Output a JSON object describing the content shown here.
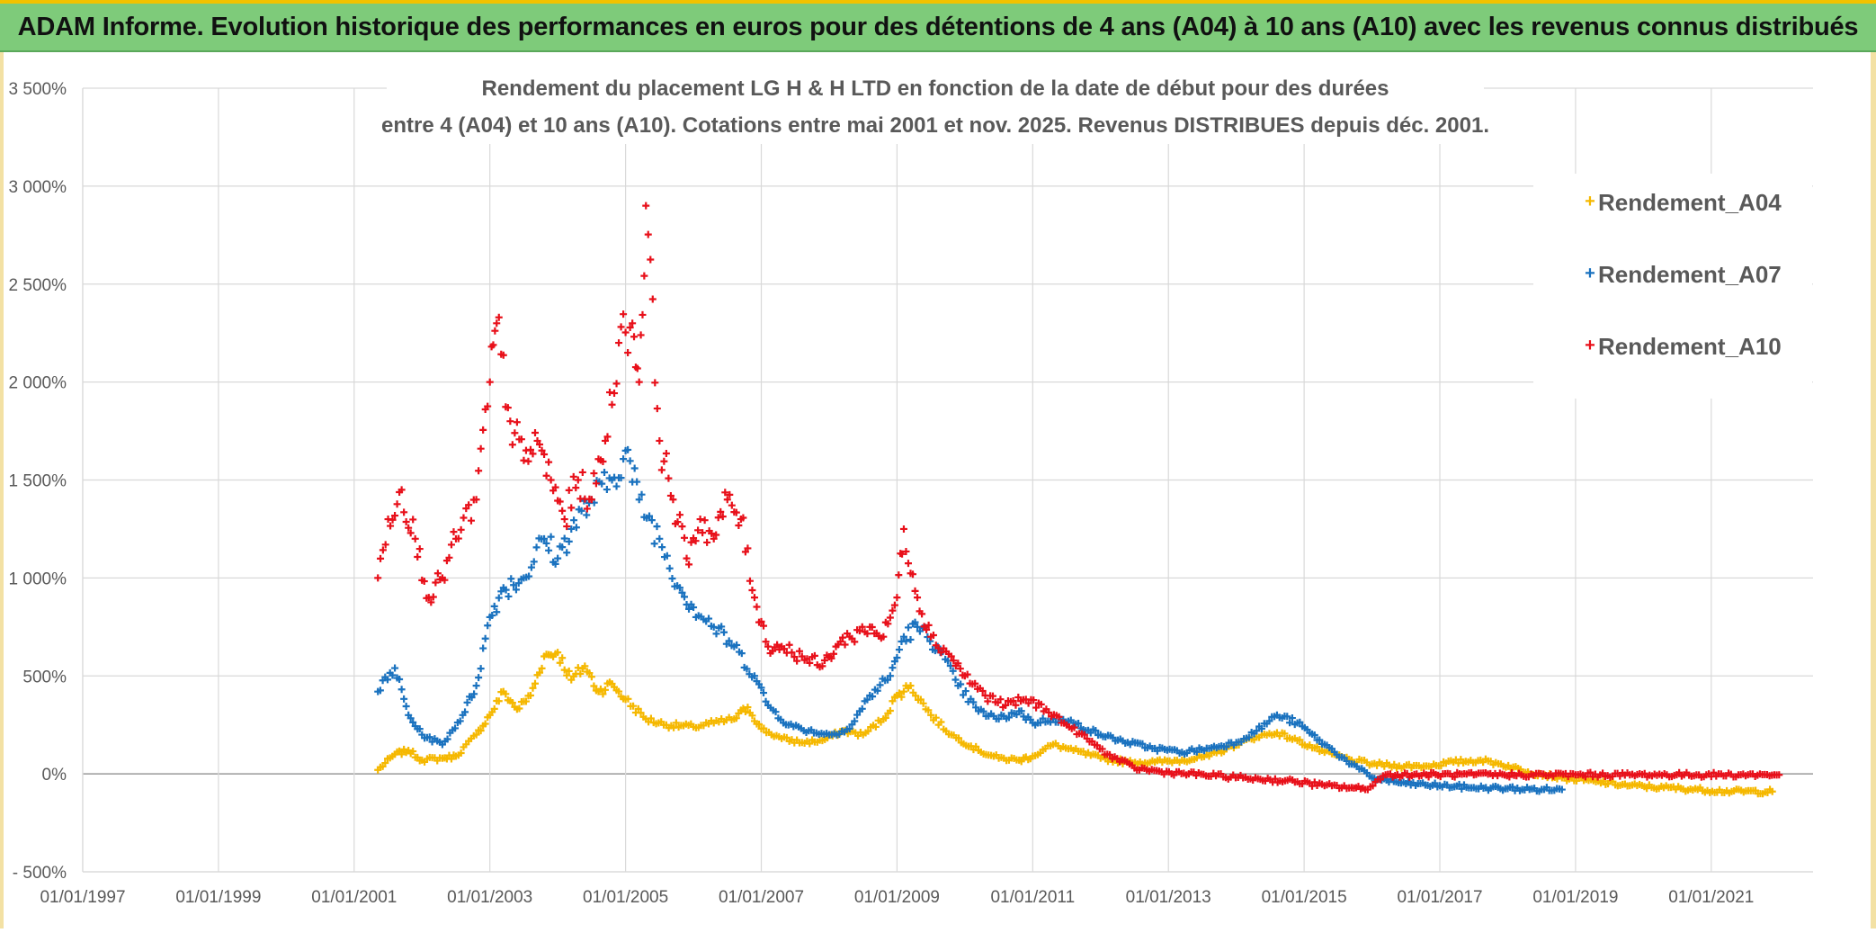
{
  "header": {
    "banner_title": "ADAM Informe. Evolution historique des performances en euros pour des détentions de 4 ans (A04) à 10 ans (A10) avec les revenus connus distribués"
  },
  "chart_data": {
    "type": "scatter",
    "title_line1": "Rendement du placement LG H & H LTD en fonction de la date de début pour des durées",
    "title_line2": "entre 4 (A04) et 10 ans (A10). Cotations entre mai 2001 et nov. 2025. Revenus DISTRIBUES depuis déc. 2001.",
    "xlabel": "",
    "ylabel": "",
    "x_range": [
      1997.0,
      2022.5
    ],
    "ylim": [
      -500,
      3500
    ],
    "y_ticks": [
      -500,
      0,
      500,
      1000,
      1500,
      2000,
      2500,
      3000,
      3500
    ],
    "y_tick_labels": [
      "- 500%",
      "0%",
      "500%",
      "1 000%",
      "1 500%",
      "2 000%",
      "2 500%",
      "3 000%",
      "3 500%"
    ],
    "x_ticks": [
      1997,
      1999,
      2001,
      2003,
      2005,
      2007,
      2009,
      2011,
      2013,
      2015,
      2017,
      2019,
      2021
    ],
    "x_tick_labels": [
      "01/01/1997",
      "01/01/1999",
      "01/01/2001",
      "01/01/2003",
      "01/01/2005",
      "01/01/2007",
      "01/01/2009",
      "01/01/2011",
      "01/01/2013",
      "01/01/2015",
      "01/01/2017",
      "01/01/2019",
      "01/01/2021"
    ],
    "grid": true,
    "legend_position": "top-right",
    "marker": "+",
    "series": [
      {
        "name": "Rendement_A04",
        "color": "#f5b800",
        "x": [
          2001.35,
          2001.6,
          2001.8,
          2002.0,
          2002.3,
          2002.5,
          2002.8,
          2003.0,
          2003.2,
          2003.4,
          2003.6,
          2003.8,
          2004.0,
          2004.2,
          2004.4,
          2004.6,
          2004.8,
          2005.0,
          2005.3,
          2005.6,
          2006.0,
          2006.3,
          2006.6,
          2006.8,
          2007.0,
          2007.3,
          2007.6,
          2007.9,
          2008.2,
          2008.5,
          2008.8,
          2009.0,
          2009.2,
          2009.5,
          2009.8,
          2010.2,
          2010.5,
          2010.8,
          2011.0,
          2011.3,
          2011.6,
          2012.0,
          2012.4,
          2012.8,
          2013.2,
          2013.6,
          2014.0,
          2014.3,
          2014.6,
          2014.9,
          2015.3,
          2015.7,
          2016.0,
          2016.4,
          2016.8,
          2017.2,
          2017.6,
          2017.9,
          2018.3,
          2018.8,
          2019.3,
          2019.8,
          2020.3,
          2020.8,
          2021.3,
          2021.9
        ],
        "values": [
          20,
          100,
          120,
          70,
          80,
          90,
          200,
          300,
          420,
          330,
          400,
          600,
          620,
          480,
          550,
          420,
          460,
          380,
          280,
          250,
          240,
          260,
          280,
          340,
          230,
          180,
          160,
          170,
          220,
          200,
          280,
          400,
          450,
          300,
          200,
          120,
          80,
          70,
          90,
          150,
          120,
          80,
          60,
          60,
          70,
          90,
          150,
          190,
          210,
          170,
          110,
          70,
          50,
          40,
          40,
          60,
          70,
          50,
          10,
          -20,
          -40,
          -60,
          -70,
          -80,
          -90,
          -90
        ]
      },
      {
        "name": "Rendement_A07",
        "color": "#1a72bf",
        "x": [
          2001.35,
          2001.6,
          2001.8,
          2002.0,
          2002.3,
          2002.6,
          2002.8,
          2003.0,
          2003.2,
          2003.5,
          2003.8,
          2004.0,
          2004.2,
          2004.5,
          2004.8,
          2005.0,
          2005.2,
          2005.5,
          2005.8,
          2006.0,
          2006.3,
          2006.6,
          2006.9,
          2007.1,
          2007.4,
          2007.7,
          2008.0,
          2008.3,
          2008.6,
          2008.9,
          2009.1,
          2009.3,
          2009.6,
          2009.9,
          2010.2,
          2010.5,
          2010.8,
          2011.0,
          2011.3,
          2011.6,
          2012.0,
          2012.4,
          2012.8,
          2013.2,
          2013.6,
          2014.0,
          2014.3,
          2014.6,
          2014.9,
          2015.3,
          2015.7,
          2016.0,
          2016.5,
          2017.0,
          2017.5,
          2018.0,
          2018.5,
          2018.8
        ],
        "values": [
          420,
          540,
          300,
          200,
          150,
          300,
          450,
          800,
          950,
          1000,
          1200,
          1100,
          1250,
          1400,
          1500,
          1650,
          1400,
          1200,
          950,
          850,
          750,
          650,
          500,
          350,
          250,
          220,
          200,
          230,
          400,
          500,
          700,
          750,
          650,
          450,
          320,
          280,
          320,
          260,
          280,
          260,
          200,
          160,
          130,
          110,
          130,
          160,
          220,
          300,
          260,
          150,
          50,
          -20,
          -50,
          -60,
          -70,
          -75,
          -80,
          -80
        ]
      },
      {
        "name": "Rendement_A10",
        "color": "#e8101a",
        "x": [
          2001.35,
          2001.5,
          2001.7,
          2001.9,
          2002.1,
          2002.3,
          2002.5,
          2002.8,
          2003.0,
          2003.1,
          2003.3,
          2003.5,
          2003.7,
          2003.9,
          2004.1,
          2004.3,
          2004.5,
          2004.7,
          2004.9,
          2005.1,
          2005.2,
          2005.3,
          2005.5,
          2005.7,
          2005.9,
          2006.1,
          2006.3,
          2006.5,
          2006.7,
          2006.9,
          2007.1,
          2007.3,
          2007.6,
          2007.9,
          2008.1,
          2008.3,
          2008.6,
          2008.8,
          2009.0,
          2009.1,
          2009.3,
          2009.5,
          2009.8,
          2010.0,
          2010.3,
          2010.6,
          2010.9,
          2011.2,
          2011.5,
          2011.8,
          2012.1,
          2012.5,
          2012.9,
          2013.3,
          2013.7,
          2014.1,
          2014.5,
          2014.9,
          2015.3,
          2015.7,
          2015.9,
          2016.2,
          2016.8,
          2017.5,
          2018.2,
          2019.0,
          2019.8,
          2020.6,
          2021.4,
          2022.0
        ],
        "values": [
          1000,
          1300,
          1450,
          1200,
          900,
          1000,
          1200,
          1400,
          2000,
          2300,
          1800,
          1600,
          1700,
          1500,
          1300,
          1500,
          1400,
          1700,
          2200,
          2300,
          2000,
          2900,
          1700,
          1400,
          1100,
          1300,
          1200,
          1400,
          1300,
          900,
          650,
          650,
          600,
          550,
          650,
          700,
          750,
          700,
          900,
          1250,
          900,
          700,
          600,
          500,
          400,
          350,
          380,
          330,
          250,
          180,
          100,
          30,
          10,
          0,
          -10,
          -20,
          -30,
          -40,
          -60,
          -70,
          -80,
          -5,
          -5,
          -5,
          -5,
          -5,
          -5,
          -5,
          -5,
          -5
        ]
      }
    ]
  }
}
